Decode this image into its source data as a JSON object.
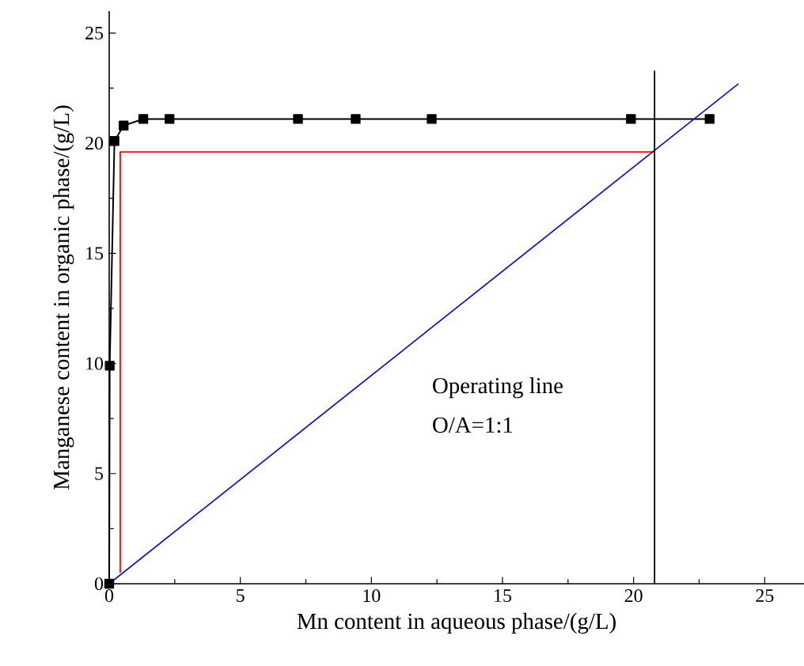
{
  "chart_data": {
    "type": "line",
    "xlabel": "Mn content in aqueous phase/(g/L)",
    "ylabel": "Manganese content in organic phase/(g/L)",
    "xlim": [
      0,
      26.5
    ],
    "ylim": [
      0,
      26
    ],
    "xticks": [
      0,
      5,
      10,
      15,
      20,
      25
    ],
    "yticks": [
      0,
      5,
      10,
      15,
      20,
      25
    ],
    "grid": false,
    "annotations": [
      "Operating line",
      "O/A=1:1"
    ],
    "series": [
      {
        "color": "#000000",
        "marker": "square",
        "x": [
          0,
          0.02,
          0.2,
          0.55,
          1.3,
          2.3,
          7.2,
          9.4,
          12.3,
          19.9,
          22.9
        ],
        "values": [
          0,
          9.9,
          20.1,
          20.8,
          21.1,
          21.1,
          21.1,
          21.1,
          21.1,
          21.1,
          21.1
        ]
      },
      {
        "color": "#ff0000",
        "marker": "none",
        "x": [
          0.42,
          0.42,
          20.8
        ],
        "values": [
          0.5,
          19.6,
          19.6
        ]
      },
      {
        "color": "#1a1aaa",
        "marker": "none",
        "x": [
          0,
          24.0
        ],
        "values": [
          0,
          22.7
        ]
      },
      {
        "color": "#000000",
        "marker": "none",
        "x": [
          20.8,
          20.8
        ],
        "values": [
          0,
          23.3
        ]
      }
    ]
  }
}
